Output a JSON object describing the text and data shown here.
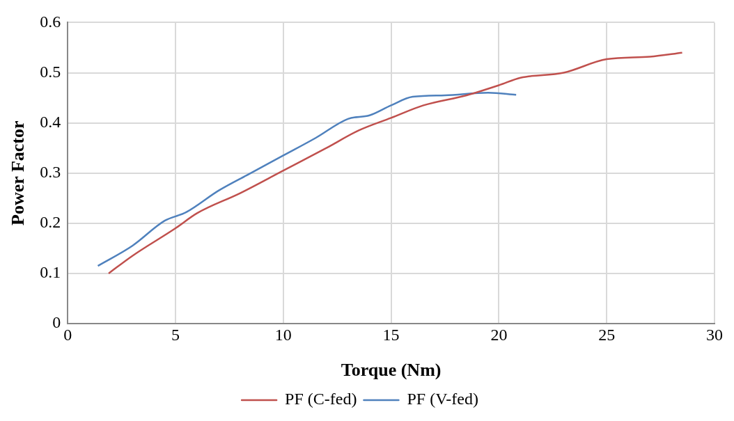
{
  "chart_data": {
    "type": "line",
    "xlabel": "Torque (Nm)",
    "ylabel": "Power Factor",
    "xlim": [
      0,
      30
    ],
    "xticks": [
      0,
      5,
      10,
      15,
      20,
      25,
      30
    ],
    "ylim": [
      0,
      0.6
    ],
    "yticks": [
      0,
      0.1,
      0.2,
      0.3,
      0.4,
      0.5,
      0.6
    ],
    "grid": true,
    "legend": "bottom",
    "marker": "none",
    "line_style": "solid",
    "series": [
      {
        "name": "PF (C-fed)",
        "color": "#c0504d",
        "x": [
          1.9,
          3,
          5,
          6,
          8,
          10,
          12,
          13.5,
          15,
          16.5,
          18.5,
          20,
          21,
          23,
          25,
          27,
          28.5
        ],
        "values": [
          0.1,
          0.135,
          0.19,
          0.22,
          0.26,
          0.305,
          0.35,
          0.385,
          0.41,
          0.435,
          0.455,
          0.475,
          0.49,
          0.5,
          0.527,
          0.532,
          0.54
        ]
      },
      {
        "name": "PF (V-fed)",
        "color": "#4f81bd",
        "x": [
          1.4,
          3,
          4.5,
          5.5,
          7,
          8.5,
          10,
          11.5,
          13,
          14,
          15,
          16,
          17.5,
          19.5,
          20.8
        ],
        "values": [
          0.115,
          0.155,
          0.205,
          0.222,
          0.265,
          0.3,
          0.335,
          0.37,
          0.408,
          0.415,
          0.435,
          0.452,
          0.455,
          0.46,
          0.456
        ]
      }
    ]
  }
}
